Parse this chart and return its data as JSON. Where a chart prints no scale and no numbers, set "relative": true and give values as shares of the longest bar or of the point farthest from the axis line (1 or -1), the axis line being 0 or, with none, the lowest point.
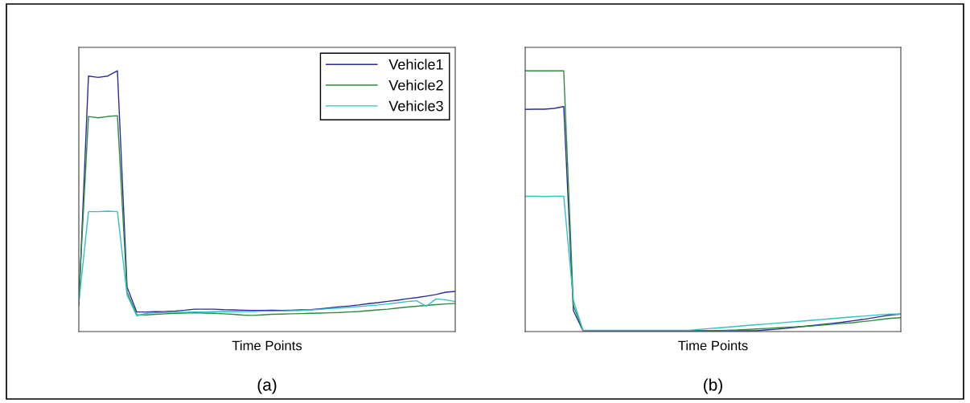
{
  "chart_data": [
    {
      "type": "line",
      "relative": true,
      "xlabel": "Time Points",
      "annotations": [
        "(a)"
      ],
      "legend": "top right",
      "tick_labels": false,
      "categories": [
        null,
        null,
        null,
        null,
        null,
        null,
        null,
        null,
        null,
        null,
        null,
        null,
        null,
        null,
        null,
        null,
        null,
        null,
        null,
        null,
        null,
        null,
        null,
        null,
        null,
        null,
        null,
        null,
        null,
        null,
        null,
        null,
        null,
        null,
        null,
        null,
        null,
        null,
        null,
        null
      ],
      "series": [
        {
          "name": "Vehicle1",
          "color": "#2b2b9a",
          "values": [
            0.1,
            0.98,
            0.975,
            0.98,
            1.0,
            0.17,
            0.075,
            0.075,
            0.076,
            0.077,
            0.079,
            0.082,
            0.086,
            0.086,
            0.086,
            0.084,
            0.083,
            0.082,
            0.081,
            0.081,
            0.082,
            0.081,
            0.082,
            0.083,
            0.084,
            0.087,
            0.091,
            0.095,
            0.098,
            0.102,
            0.107,
            0.111,
            0.116,
            0.12,
            0.126,
            0.13,
            0.136,
            0.142,
            0.151,
            0.154
          ]
        },
        {
          "name": "Vehicle2",
          "color": "#2e8b3e",
          "values": [
            0.13,
            0.825,
            0.82,
            0.825,
            0.828,
            0.15,
            0.065,
            0.064,
            0.066,
            0.068,
            0.07,
            0.071,
            0.072,
            0.071,
            0.07,
            0.068,
            0.066,
            0.063,
            0.062,
            0.064,
            0.066,
            0.067,
            0.068,
            0.069,
            0.07,
            0.071,
            0.072,
            0.073,
            0.075,
            0.077,
            0.08,
            0.083,
            0.086,
            0.09,
            0.094,
            0.097,
            0.1,
            0.103,
            0.106,
            0.108
          ]
        },
        {
          "name": "Vehicle3",
          "color": "#33c0c0",
          "values": [
            0.11,
            0.46,
            0.46,
            0.462,
            0.46,
            0.14,
            0.06,
            0.07,
            0.072,
            0.073,
            0.074,
            0.074,
            0.075,
            0.075,
            0.076,
            0.076,
            0.076,
            0.077,
            0.077,
            0.078,
            0.078,
            0.079,
            0.08,
            0.081,
            0.083,
            0.085,
            0.088,
            0.09,
            0.093,
            0.096,
            0.099,
            0.102,
            0.106,
            0.11,
            0.115,
            0.118,
            0.097,
            0.125,
            0.122,
            0.115
          ]
        }
      ]
    },
    {
      "type": "line",
      "relative": true,
      "xlabel": "Time Points",
      "annotations": [
        "(b)"
      ],
      "tick_labels": false,
      "categories": [
        null,
        null,
        null,
        null,
        null,
        null,
        null,
        null,
        null,
        null,
        null,
        null,
        null,
        null,
        null,
        null,
        null,
        null,
        null,
        null,
        null,
        null,
        null,
        null,
        null,
        null,
        null,
        null,
        null,
        null,
        null,
        null,
        null,
        null,
        null,
        null,
        null,
        null,
        null,
        null
      ],
      "series": [
        {
          "color": "#2b2b9a",
          "values": [
            0.852,
            0.853,
            0.853,
            0.856,
            0.863,
            0.08,
            0.003,
            0.003,
            0.003,
            0.003,
            0.003,
            0.003,
            0.003,
            0.003,
            0.003,
            0.003,
            0.003,
            0.003,
            0.003,
            0.003,
            0.003,
            0.003,
            0.003,
            0.003,
            0.003,
            0.006,
            0.009,
            0.012,
            0.016,
            0.02,
            0.024,
            0.028,
            0.032,
            0.036,
            0.041,
            0.046,
            0.052,
            0.058,
            0.064,
            0.067
          ]
        },
        {
          "color": "#2e8b3e",
          "values": [
            1.0,
            1.0,
            1.0,
            1.0,
            1.0,
            0.1,
            0.004,
            0.004,
            0.004,
            0.004,
            0.004,
            0.004,
            0.004,
            0.004,
            0.004,
            0.004,
            0.004,
            0.004,
            0.004,
            0.004,
            0.004,
            0.005,
            0.006,
            0.008,
            0.01,
            0.012,
            0.014,
            0.016,
            0.018,
            0.02,
            0.022,
            0.025,
            0.028,
            0.031,
            0.034,
            0.038,
            0.042,
            0.047,
            0.051,
            0.053
          ]
        },
        {
          "color": "#33c0c0",
          "values": [
            0.519,
            0.519,
            0.518,
            0.519,
            0.519,
            0.12,
            0.005,
            0.005,
            0.005,
            0.005,
            0.005,
            0.005,
            0.005,
            0.005,
            0.005,
            0.005,
            0.005,
            0.005,
            0.008,
            0.011,
            0.014,
            0.017,
            0.02,
            0.023,
            0.026,
            0.029,
            0.032,
            0.035,
            0.038,
            0.041,
            0.044,
            0.047,
            0.05,
            0.053,
            0.056,
            0.059,
            0.062,
            0.065,
            0.067,
            0.067
          ]
        }
      ]
    }
  ]
}
